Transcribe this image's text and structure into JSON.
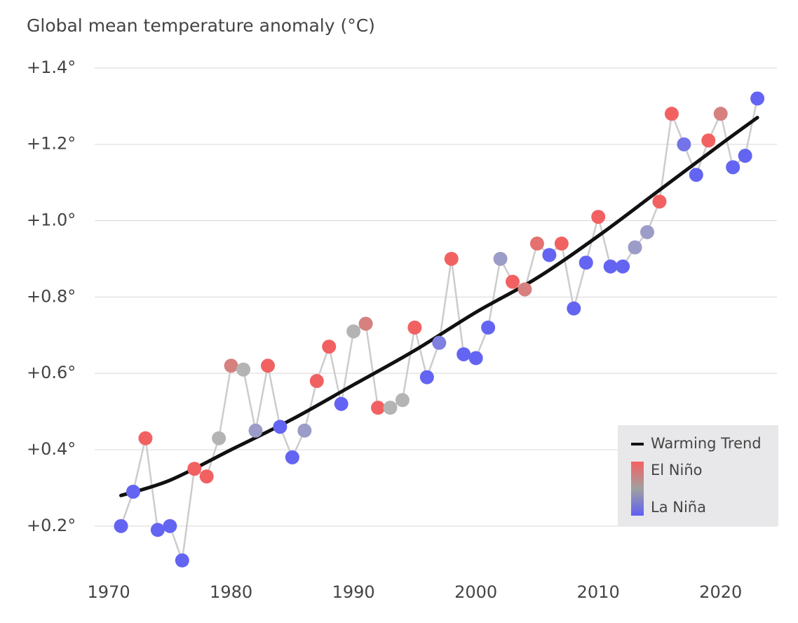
{
  "chart_data": {
    "type": "scatter-line",
    "title": "Global mean temperature anomaly (°C)",
    "x": [
      1971,
      1972,
      1973,
      1974,
      1975,
      1976,
      1977,
      1978,
      1979,
      1980,
      1981,
      1982,
      1983,
      1984,
      1985,
      1986,
      1987,
      1988,
      1989,
      1990,
      1991,
      1992,
      1993,
      1994,
      1995,
      1996,
      1997,
      1998,
      1999,
      2000,
      2001,
      2002,
      2003,
      2004,
      2005,
      2006,
      2007,
      2008,
      2009,
      2010,
      2011,
      2012,
      2013,
      2014,
      2015,
      2016,
      2017,
      2018,
      2019,
      2020,
      2021,
      2022,
      2023
    ],
    "values": [
      0.2,
      0.29,
      0.43,
      0.19,
      0.2,
      0.11,
      0.35,
      0.33,
      0.43,
      0.62,
      0.61,
      0.45,
      0.62,
      0.46,
      0.38,
      0.45,
      0.58,
      0.67,
      0.52,
      0.71,
      0.73,
      0.51,
      0.51,
      0.53,
      0.72,
      0.59,
      0.68,
      0.9,
      0.65,
      0.64,
      0.72,
      0.9,
      0.84,
      0.82,
      0.94,
      0.91,
      0.94,
      0.77,
      0.89,
      1.01,
      0.88,
      0.88,
      0.93,
      0.97,
      1.05,
      1.28,
      1.2,
      1.12,
      1.21,
      1.28,
      1.14,
      1.17,
      1.32
    ],
    "colors": [
      "#6464f2",
      "#6464f2",
      "#f26161",
      "#6464f2",
      "#6464f2",
      "#6464f2",
      "#f26161",
      "#f26161",
      "#b4b4b4",
      "#d68080",
      "#b4b4b4",
      "#9c9cc8",
      "#f26161",
      "#6464f2",
      "#6464f2",
      "#9c9cc8",
      "#f26161",
      "#f26161",
      "#6464f2",
      "#b4b4b4",
      "#d68080",
      "#f26161",
      "#b4b4b4",
      "#b4b4b4",
      "#f26161",
      "#6464f2",
      "#8080e0",
      "#f26161",
      "#6464f2",
      "#6464f2",
      "#6464f2",
      "#9c9cc8",
      "#f26161",
      "#d68080",
      "#e47070",
      "#6464f2",
      "#f26161",
      "#6464f2",
      "#6464f2",
      "#f26161",
      "#6464f2",
      "#6464f2",
      "#9c9cc8",
      "#9c9cc8",
      "#f26161",
      "#f26161",
      "#7474e8",
      "#6464f2",
      "#f26161",
      "#d68080",
      "#6464f2",
      "#6464f2",
      "#6464f2"
    ],
    "line_color": "#cccccc",
    "trend": {
      "name": "Warming Trend",
      "color": "#111111",
      "x": [
        1971,
        1975,
        1980,
        1985,
        1990,
        1995,
        2000,
        2005,
        2010,
        2015,
        2020,
        2023
      ],
      "values": [
        0.28,
        0.32,
        0.4,
        0.48,
        0.57,
        0.66,
        0.76,
        0.85,
        0.96,
        1.08,
        1.2,
        1.27
      ]
    },
    "legend": {
      "items": [
        "El Niño",
        "La Niña"
      ],
      "gradient": [
        "#f76060",
        "#a0a0a0",
        "#5f5ff5"
      ]
    },
    "xlim": [
      1968.85,
      2024.6
    ],
    "ylim": [
      0.06,
      1.42
    ],
    "xticks": [
      1970,
      1980,
      1990,
      2000,
      2010,
      2020
    ],
    "yticks": [
      {
        "value": 0.2,
        "label": "+0.2°"
      },
      {
        "value": 0.4,
        "label": "+0.4°"
      },
      {
        "value": 0.6,
        "label": "+0.6°"
      },
      {
        "value": 0.8,
        "label": "+0.8°"
      },
      {
        "value": 1.0,
        "label": "+1.0°"
      },
      {
        "value": 1.2,
        "label": "+1.2°"
      },
      {
        "value": 1.4,
        "label": "+1.4°"
      }
    ],
    "grid": true
  }
}
